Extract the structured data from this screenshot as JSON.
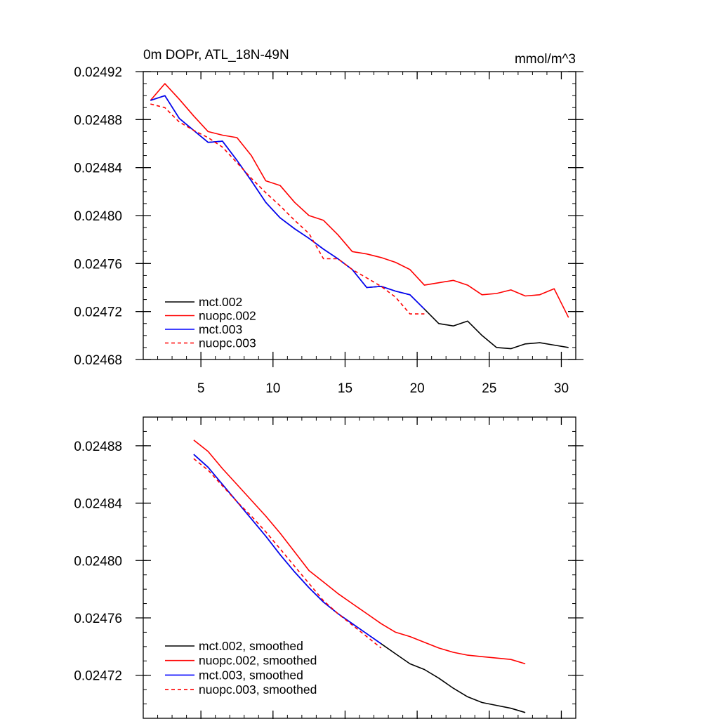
{
  "chart_data": [
    {
      "type": "line",
      "title_left": "0m DOPr, ATL_18N-49N",
      "title_right": "mmol/m^3",
      "xlabel": "",
      "ylabel": "",
      "xlim": [
        1,
        31
      ],
      "ylim": [
        0.02468,
        0.02492
      ],
      "xticks": [
        5,
        10,
        15,
        20,
        25,
        30
      ],
      "yticks": [
        0.02468,
        0.02472,
        0.02476,
        0.0248,
        0.02484,
        0.02488,
        0.02492
      ],
      "ytick_labels": [
        "0.02468",
        "0.02472",
        "0.02476",
        "0.02480",
        "0.02484",
        "0.02488",
        "0.02492"
      ],
      "legend_position": "bottom-left",
      "series": [
        {
          "name": "mct.002",
          "color": "#000000",
          "dash": "solid",
          "x": [
            1.5,
            2.5,
            3.5,
            4.5,
            5.5,
            6.5,
            7.5,
            8.5,
            9.5,
            10.5,
            11.5,
            12.5,
            13.5,
            14.5,
            15.5,
            16.5,
            17.5,
            18.5,
            19.5,
            20.5,
            21.5,
            22.5,
            23.5,
            24.5,
            25.5,
            26.5,
            27.5,
            28.5,
            29.5,
            30.5
          ],
          "values": [
            0.024896,
            0.0249,
            0.024881,
            0.024871,
            0.024861,
            0.024862,
            0.024846,
            0.024829,
            0.024811,
            0.024798,
            0.024789,
            0.024781,
            0.024772,
            0.024764,
            0.024755,
            0.02474,
            0.024741,
            0.024737,
            0.024734,
            0.024722,
            0.02471,
            0.024708,
            0.024712,
            0.0247,
            0.02469,
            0.024689,
            0.024693,
            0.024694,
            0.024692,
            0.02469
          ]
        },
        {
          "name": "nuopc.002",
          "color": "#ff0000",
          "dash": "solid",
          "x": [
            1.5,
            2.5,
            3.5,
            4.5,
            5.5,
            6.5,
            7.5,
            8.5,
            9.5,
            10.5,
            11.5,
            12.5,
            13.5,
            14.5,
            15.5,
            16.5,
            17.5,
            18.5,
            19.5,
            20.5,
            21.5,
            22.5,
            23.5,
            24.5,
            25.5,
            26.5,
            27.5,
            28.5,
            29.5,
            30.5
          ],
          "values": [
            0.024896,
            0.02491,
            0.024897,
            0.024883,
            0.02487,
            0.024867,
            0.024865,
            0.02485,
            0.024829,
            0.024825,
            0.024811,
            0.0248,
            0.024796,
            0.024784,
            0.02477,
            0.024768,
            0.024765,
            0.024761,
            0.024755,
            0.024742,
            0.024744,
            0.024746,
            0.024742,
            0.024734,
            0.024735,
            0.024738,
            0.024733,
            0.024734,
            0.024739,
            0.024715
          ]
        },
        {
          "name": "mct.003",
          "color": "#0000ff",
          "dash": "solid",
          "x": [
            1.5,
            2.5,
            3.5,
            4.5,
            5.5,
            6.5,
            7.5,
            8.5,
            9.5,
            10.5,
            11.5,
            12.5,
            13.5,
            14.5,
            15.5,
            16.5,
            17.5,
            18.5,
            19.5,
            20.5
          ],
          "values": [
            0.024896,
            0.0249,
            0.024881,
            0.024871,
            0.024861,
            0.024862,
            0.024846,
            0.024829,
            0.024811,
            0.024798,
            0.024789,
            0.024781,
            0.024772,
            0.024764,
            0.024755,
            0.02474,
            0.024741,
            0.024737,
            0.024734,
            0.024722
          ]
        },
        {
          "name": "nuopc.003",
          "color": "#ff0000",
          "dash": "dashed",
          "x": [
            1.5,
            2.5,
            3.5,
            4.5,
            5.5,
            6.5,
            7.5,
            8.5,
            9.5,
            10.5,
            11.5,
            12.5,
            13.5,
            14.5,
            15.5,
            16.5,
            17.5,
            18.5,
            19.5,
            20.5
          ],
          "values": [
            0.024893,
            0.02489,
            0.024878,
            0.024871,
            0.024865,
            0.024857,
            0.024844,
            0.024831,
            0.024819,
            0.024808,
            0.024796,
            0.024785,
            0.024764,
            0.024764,
            0.024755,
            0.024748,
            0.024741,
            0.024732,
            0.024718,
            0.024718
          ]
        }
      ]
    },
    {
      "type": "line",
      "title_left": "",
      "title_right": "",
      "xlabel": "",
      "ylabel": "",
      "xlim": [
        1,
        31
      ],
      "ylim": [
        0.02469,
        0.0249
      ],
      "xticks": [
        5,
        10,
        15,
        20,
        25,
        30
      ],
      "yticks": [
        0.02472,
        0.02476,
        0.0248,
        0.02484,
        0.02488
      ],
      "ytick_labels": [
        "0.02472",
        "0.02476",
        "0.02480",
        "0.02484",
        "0.02488"
      ],
      "legend_position": "bottom-left",
      "series": [
        {
          "name": "mct.002, smoothed",
          "color": "#000000",
          "dash": "solid",
          "x": [
            4.5,
            5.5,
            6.5,
            7.5,
            8.5,
            9.5,
            10.5,
            11.5,
            12.5,
            13.5,
            14.5,
            15.5,
            16.5,
            17.5,
            18.5,
            19.5,
            20.5,
            21.5,
            22.5,
            23.5,
            24.5,
            25.5,
            26.5,
            27.5
          ],
          "values": [
            0.024874,
            0.024865,
            0.024853,
            0.024841,
            0.024829,
            0.024817,
            0.024804,
            0.024792,
            0.024781,
            0.024771,
            0.024763,
            0.024756,
            0.024749,
            0.024742,
            0.024735,
            0.024728,
            0.024724,
            0.024718,
            0.024711,
            0.024705,
            0.024701,
            0.024699,
            0.024697,
            0.024694
          ]
        },
        {
          "name": "nuopc.002, smoothed",
          "color": "#ff0000",
          "dash": "solid",
          "x": [
            4.5,
            5.5,
            6.5,
            7.5,
            8.5,
            9.5,
            10.5,
            11.5,
            12.5,
            13.5,
            14.5,
            15.5,
            16.5,
            17.5,
            18.5,
            19.5,
            20.5,
            21.5,
            22.5,
            23.5,
            24.5,
            25.5,
            26.5,
            27.5
          ],
          "values": [
            0.024884,
            0.024876,
            0.024864,
            0.024853,
            0.024842,
            0.024831,
            0.024819,
            0.024806,
            0.024793,
            0.024785,
            0.024777,
            0.02477,
            0.024763,
            0.024756,
            0.02475,
            0.024747,
            0.024743,
            0.024739,
            0.024736,
            0.024734,
            0.024733,
            0.024732,
            0.024731,
            0.024728
          ]
        },
        {
          "name": "mct.003, smoothed",
          "color": "#0000ff",
          "dash": "solid",
          "x": [
            4.5,
            5.5,
            6.5,
            7.5,
            8.5,
            9.5,
            10.5,
            11.5,
            12.5,
            13.5,
            14.5,
            15.5,
            16.5,
            17.5
          ],
          "values": [
            0.024874,
            0.024865,
            0.024853,
            0.024841,
            0.024829,
            0.024817,
            0.024804,
            0.024792,
            0.024781,
            0.024771,
            0.024763,
            0.024756,
            0.024749,
            0.024742
          ]
        },
        {
          "name": "nuopc.003, smoothed",
          "color": "#ff0000",
          "dash": "dashed",
          "x": [
            4.5,
            5.5,
            6.5,
            7.5,
            8.5,
            9.5,
            10.5,
            11.5,
            12.5,
            13.5,
            14.5,
            15.5,
            16.5,
            17.5
          ],
          "values": [
            0.024871,
            0.024863,
            0.024852,
            0.024841,
            0.024831,
            0.02482,
            0.024808,
            0.024796,
            0.024784,
            0.024772,
            0.024763,
            0.024755,
            0.024747,
            0.024739
          ]
        }
      ]
    }
  ]
}
